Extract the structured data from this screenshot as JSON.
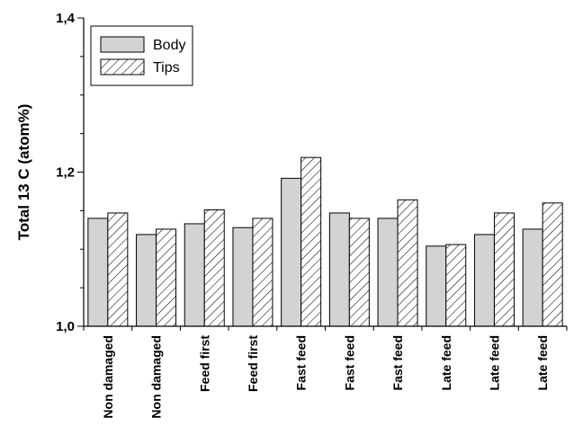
{
  "chart_data": {
    "type": "bar",
    "categories": [
      "Non damaged",
      "Non damaged",
      "Feed first",
      "Feed first",
      "Fast feed",
      "Fast feed",
      "Fast feed",
      "Late feed",
      "Late feed",
      "Late feed"
    ],
    "series": [
      {
        "name": "Body",
        "values": [
          1.14,
          1.119,
          1.133,
          1.128,
          1.192,
          1.147,
          1.14,
          1.104,
          1.119,
          1.126
        ],
        "color": "#d3d3d3",
        "pattern": "solid"
      },
      {
        "name": "Tips",
        "values": [
          1.147,
          1.126,
          1.151,
          1.14,
          1.219,
          1.14,
          1.164,
          1.106,
          1.147,
          1.16
        ],
        "color": "#ffffff",
        "pattern": "hatch"
      }
    ],
    "ylabel": "Total 13 C (atom%)",
    "xlabel": "",
    "ylim": [
      1.0,
      1.4
    ],
    "yticks": [
      "1,0",
      "1,2",
      "1,4"
    ],
    "ytick_values": [
      1.0,
      1.2,
      1.4
    ],
    "grid": false,
    "legend_position": "top-left"
  }
}
